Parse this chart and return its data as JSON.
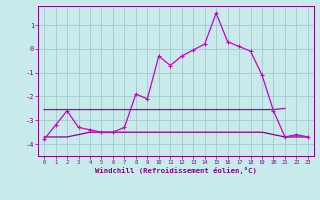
{
  "xlabel": "Windchill (Refroidissement éolien,°C)",
  "ylabel": "",
  "bg_color": "#c8eaea",
  "grid_color": "#a0cccc",
  "line_wc_color": "#cc00cc",
  "line_upper_color": "#880088",
  "line_lower_color": "#aa00aa",
  "xlim": [
    -0.5,
    23.5
  ],
  "ylim": [
    -4.5,
    1.8
  ],
  "yticks": [
    1,
    0,
    -1,
    -2,
    -3,
    -4
  ],
  "xticks": [
    0,
    1,
    2,
    3,
    4,
    5,
    6,
    7,
    8,
    9,
    10,
    11,
    12,
    13,
    14,
    15,
    16,
    17,
    18,
    19,
    20,
    21,
    22,
    23
  ],
  "windchill_x": [
    0,
    1,
    2,
    3,
    4,
    5,
    6,
    7,
    8,
    9,
    10,
    11,
    12,
    13,
    14,
    15,
    16,
    17,
    18,
    19,
    20,
    21,
    22,
    23
  ],
  "windchill_y": [
    -3.8,
    -3.2,
    -2.6,
    -3.3,
    -3.4,
    -3.5,
    -3.5,
    -3.3,
    -1.9,
    -2.1,
    -0.3,
    -0.7,
    -0.3,
    -0.05,
    0.2,
    1.5,
    0.3,
    0.1,
    -0.1,
    -1.1,
    -2.6,
    -3.7,
    -3.6,
    -3.7
  ],
  "upper_flat_x": [
    0,
    1,
    2,
    3,
    4,
    5,
    6,
    7,
    8,
    9,
    10,
    11,
    12,
    13,
    14,
    15,
    16,
    17,
    18,
    19,
    20,
    21
  ],
  "upper_flat_y": [
    -2.55,
    -2.55,
    -2.55,
    -2.55,
    -2.55,
    -2.55,
    -2.55,
    -2.55,
    -2.55,
    -2.55,
    -2.55,
    -2.55,
    -2.55,
    -2.55,
    -2.55,
    -2.55,
    -2.55,
    -2.55,
    -2.55,
    -2.55,
    -2.55,
    -2.5
  ],
  "lower_flat_x": [
    0,
    1,
    2,
    3,
    4,
    5,
    6,
    7,
    8,
    9,
    10,
    11,
    12,
    13,
    14,
    15,
    16,
    17,
    18,
    19,
    20,
    21,
    22,
    23
  ],
  "lower_flat_y": [
    -3.7,
    -3.7,
    -3.7,
    -3.6,
    -3.5,
    -3.5,
    -3.5,
    -3.5,
    -3.5,
    -3.5,
    -3.5,
    -3.5,
    -3.5,
    -3.5,
    -3.5,
    -3.5,
    -3.5,
    -3.5,
    -3.5,
    -3.5,
    -3.6,
    -3.7,
    -3.7,
    -3.7
  ]
}
